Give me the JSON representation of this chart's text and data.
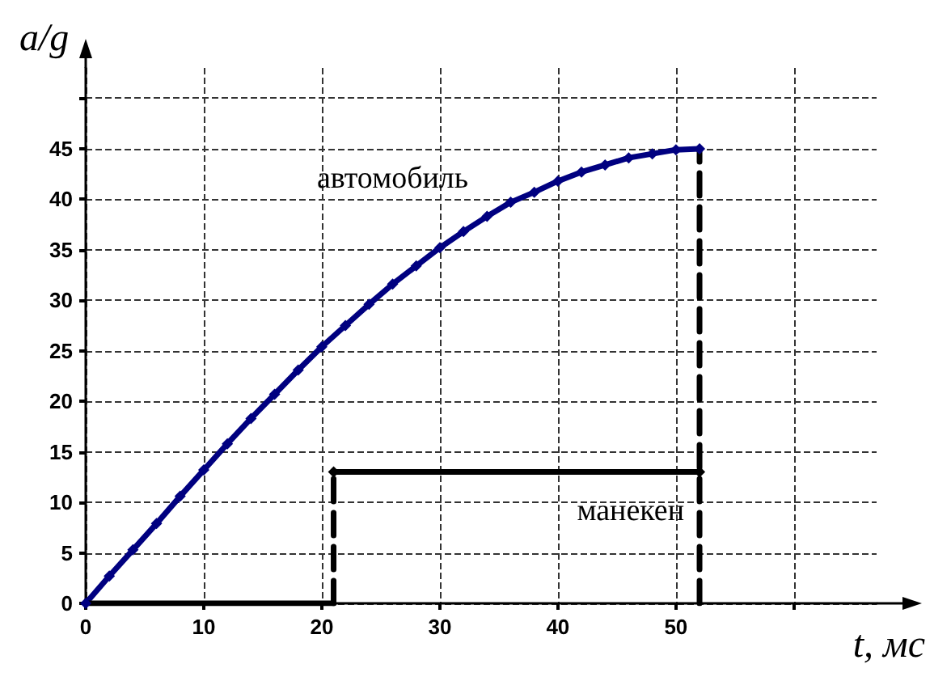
{
  "chart_data": {
    "type": "line",
    "xlabel": "t, мс",
    "ylabel": "a/g",
    "xlim": [
      0,
      67
    ],
    "xticks": [
      0,
      10,
      20,
      30,
      40,
      50,
      {
        "value": 60,
        "label": null
      }
    ],
    "ylim": [
      0,
      53
    ],
    "yticks": [
      0,
      5,
      10,
      15,
      20,
      25,
      30,
      35,
      40,
      45,
      {
        "value": 50,
        "label": null
      }
    ],
    "grid": true,
    "legend": false,
    "series": [
      {
        "name": "автомобиль",
        "color": "#000080",
        "marker": "diamond",
        "line_style": "solid",
        "x": [
          0,
          2,
          4,
          6,
          8,
          10,
          12,
          14,
          16,
          18,
          20,
          22,
          24,
          26,
          28,
          30,
          32,
          34,
          36,
          38,
          40,
          42,
          44,
          46,
          48,
          50,
          52
        ],
        "values": [
          0,
          2.7,
          5.3,
          7.9,
          10.6,
          13.2,
          15.8,
          18.3,
          20.7,
          23.1,
          25.4,
          27.5,
          29.6,
          31.6,
          33.4,
          35.2,
          36.8,
          38.3,
          39.7,
          40.7,
          41.8,
          42.7,
          43.4,
          44.1,
          44.5,
          44.9,
          45
        ]
      },
      {
        "color": "#000000",
        "marker": "none",
        "line_style": "solid",
        "x": [
          0,
          21
        ],
        "values": [
          0,
          0
        ]
      },
      {
        "color": "#000000",
        "line_style": "dashed",
        "x": [
          21,
          21
        ],
        "values": [
          0,
          13
        ]
      },
      {
        "name": "манекен",
        "color": "#000000",
        "marker": "diamond",
        "line_style": "solid",
        "x": [
          21,
          52
        ],
        "values": [
          13,
          13
        ]
      },
      {
        "color": "#000000",
        "marker": "none",
        "line_style": "dashed",
        "x": [
          52,
          52
        ],
        "values": [
          0,
          45
        ]
      }
    ]
  }
}
